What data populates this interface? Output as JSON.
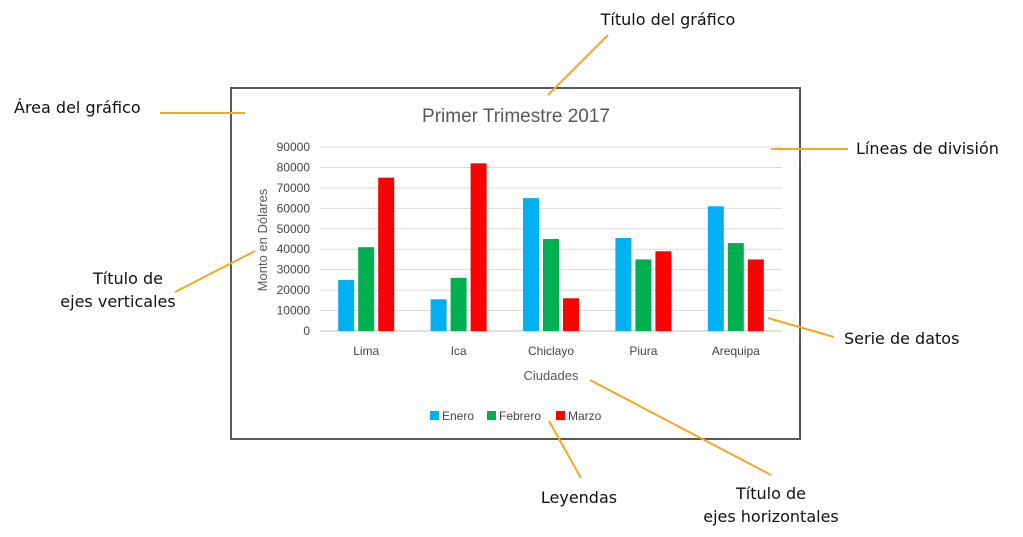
{
  "callouts": {
    "titulo_grafico": "Título del gráfico",
    "area_grafico": "Área del gráfico",
    "lineas_division": "Líneas de división",
    "titulo_ejes_verticales_1": "Título de",
    "titulo_ejes_verticales_2": "ejes verticales",
    "serie_datos": "Serie de datos",
    "leyendas": "Leyendas",
    "titulo_ejes_horizontales_1": "Título de",
    "titulo_ejes_horizontales_2": "ejes horizontales"
  },
  "colors": {
    "callout_line": "#F5A623",
    "frame": "#595959",
    "gridline": "#D9D9D9"
  },
  "chart_data": {
    "type": "bar",
    "title": "Primer Trimestre 2017",
    "xlabel": "Ciudades",
    "ylabel": "Monto en Dólares",
    "categories": [
      "Lima",
      "Ica",
      "Chiclayo",
      "Piura",
      "Arequipa"
    ],
    "ylim": [
      0,
      90000
    ],
    "yticks": [
      "0",
      "10000",
      "20000",
      "30000",
      "40000",
      "50000",
      "60000",
      "70000",
      "80000",
      "90000"
    ],
    "grid": true,
    "legend_position": "bottom",
    "series": [
      {
        "name": "Enero",
        "color": "#00B0F0",
        "values": [
          25000,
          15500,
          65000,
          45500,
          61000
        ]
      },
      {
        "name": "Febrero",
        "color": "#00B050",
        "values": [
          41000,
          26000,
          45000,
          35000,
          43000
        ]
      },
      {
        "name": "Marzo",
        "color": "#FF0000",
        "values": [
          75000,
          82000,
          16000,
          39000,
          35000
        ]
      }
    ]
  }
}
